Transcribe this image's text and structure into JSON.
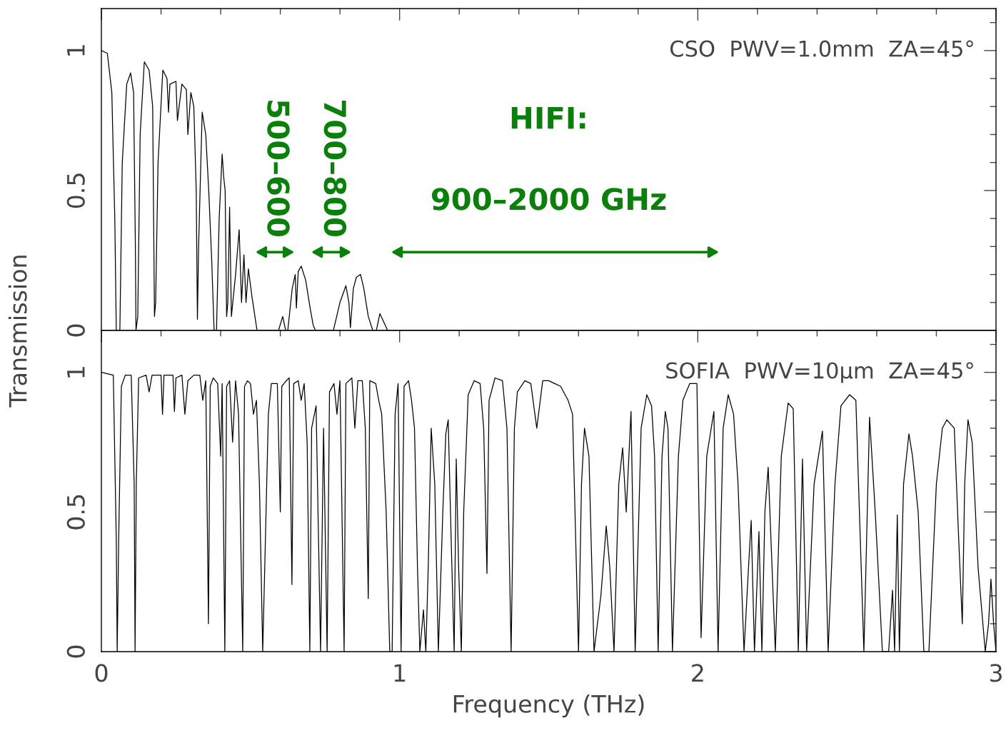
{
  "chart_data": [
    {
      "type": "line",
      "ylabel": "Transmission",
      "xlim": [
        0,
        3
      ],
      "ylim": [
        0,
        1.15
      ],
      "tick_labels": "y",
      "xticks": [
        0,
        {
          "value": 0.2,
          "label": null
        },
        {
          "value": 0.4,
          "label": null
        },
        {
          "value": 0.6,
          "label": null
        },
        {
          "value": 0.8,
          "label": null
        },
        1,
        {
          "value": 1.2,
          "label": null
        },
        {
          "value": 1.4,
          "label": null
        },
        {
          "value": 1.6,
          "label": null
        },
        {
          "value": 1.8,
          "label": null
        },
        2,
        {
          "value": 2.2,
          "label": null
        },
        {
          "value": 2.4,
          "label": null
        },
        {
          "value": 2.6,
          "label": null
        },
        {
          "value": 2.8,
          "label": null
        },
        3
      ],
      "yticks": [
        0,
        {
          "value": 0.1,
          "label": null
        },
        {
          "value": 0.2,
          "label": null
        },
        {
          "value": 0.3,
          "label": null
        },
        {
          "value": 0.4,
          "label": null
        },
        0.5,
        {
          "value": 0.6,
          "label": null
        },
        {
          "value": 0.7,
          "label": null
        },
        {
          "value": 0.8,
          "label": null
        },
        {
          "value": 0.9,
          "label": null
        },
        1,
        {
          "value": 1.1,
          "label": null
        }
      ],
      "annotations": [
        "CSO  PWV=1.0mm  ZA=45°",
        "500–600",
        "700–800",
        "HIFI:",
        "900–2000 GHz"
      ],
      "series": [
        {
          "color": "#000000",
          "x": [
            0,
            0.02,
            0.035,
            0.045,
            0.05,
            0.062,
            0.07,
            0.085,
            0.098,
            0.108,
            0.114,
            0.116,
            0.122,
            0.13,
            0.144,
            0.16,
            0.172,
            0.178,
            0.182,
            0.19,
            0.206,
            0.22,
            0.225,
            0.23,
            0.25,
            0.255,
            0.27,
            0.285,
            0.29,
            0.3,
            0.31,
            0.318,
            0.322,
            0.326,
            0.338,
            0.35,
            0.36,
            0.37,
            0.378,
            0.386,
            0.395,
            0.405,
            0.41,
            0.415,
            0.42,
            0.424,
            0.43,
            0.436,
            0.45,
            0.462,
            0.47,
            0.478,
            0.485,
            0.493,
            0.505,
            0.522,
            0.594,
            0.608,
            0.618,
            0.625,
            0.64,
            0.65,
            0.654,
            0.66,
            0.67,
            0.685,
            0.7,
            0.71,
            0.718,
            0.778,
            0.8,
            0.82,
            0.83,
            0.835,
            0.845,
            0.855,
            0.869,
            0.88,
            0.895,
            0.91,
            0.922,
            0.934,
            0.96,
            3.0
          ],
          "values": [
            1.0,
            0.99,
            0.85,
            0.4,
            0,
            0,
            0.6,
            0.88,
            0.92,
            0.85,
            0.3,
            0,
            0.05,
            0.7,
            0.96,
            0.93,
            0.8,
            0.05,
            0.1,
            0.6,
            0.93,
            0.9,
            0.78,
            0.88,
            0.89,
            0.75,
            0.88,
            0.86,
            0.7,
            0.85,
            0.8,
            0.5,
            0.04,
            0.3,
            0.78,
            0.7,
            0.5,
            0.25,
            0,
            0,
            0.4,
            0.63,
            0.55,
            0.5,
            0.05,
            0.1,
            0.44,
            0.05,
            0.2,
            0.36,
            0.1,
            0.27,
            0.1,
            0.22,
            0.12,
            0,
            0,
            0.05,
            0,
            0,
            0.15,
            0.2,
            0.08,
            0.21,
            0.23,
            0.18,
            0.08,
            0.02,
            0,
            0,
            0.1,
            0.16,
            0.1,
            0.01,
            0.15,
            0.19,
            0.2,
            0.15,
            0.05,
            0,
            0,
            0.06,
            0,
            0
          ]
        }
      ]
    },
    {
      "type": "line",
      "xlabel": "Frequency (THz)",
      "xlim": [
        0,
        3
      ],
      "ylim": [
        0,
        1.15
      ],
      "xticks": [
        0,
        {
          "value": 0.2,
          "label": null
        },
        {
          "value": 0.4,
          "label": null
        },
        {
          "value": 0.6,
          "label": null
        },
        {
          "value": 0.8,
          "label": null
        },
        1,
        {
          "value": 1.2,
          "label": null
        },
        {
          "value": 1.4,
          "label": null
        },
        {
          "value": 1.6,
          "label": null
        },
        {
          "value": 1.8,
          "label": null
        },
        2,
        {
          "value": 2.2,
          "label": null
        },
        {
          "value": 2.4,
          "label": null
        },
        {
          "value": 2.6,
          "label": null
        },
        {
          "value": 2.8,
          "label": null
        },
        3
      ],
      "yticks": [
        0,
        {
          "value": 0.1,
          "label": null
        },
        {
          "value": 0.2,
          "label": null
        },
        {
          "value": 0.3,
          "label": null
        },
        {
          "value": 0.4,
          "label": null
        },
        0.5,
        {
          "value": 0.6,
          "label": null
        },
        {
          "value": 0.7,
          "label": null
        },
        {
          "value": 0.8,
          "label": null
        },
        {
          "value": 0.9,
          "label": null
        },
        1,
        {
          "value": 1.1,
          "label": null
        }
      ],
      "annotations": [
        "SOFIA  PWV=10μm  ZA=45°"
      ],
      "series": [
        {
          "color": "#000000",
          "x": [
            0,
            0.04,
            0.05,
            0.053,
            0.058,
            0.067,
            0.08,
            0.1,
            0.11,
            0.113,
            0.117,
            0.125,
            0.15,
            0.16,
            0.17,
            0.2,
            0.205,
            0.21,
            0.24,
            0.245,
            0.25,
            0.27,
            0.28,
            0.29,
            0.31,
            0.33,
            0.34,
            0.35,
            0.359,
            0.365,
            0.375,
            0.39,
            0.4,
            0.405,
            0.414,
            0.42,
            0.43,
            0.44,
            0.45,
            0.46,
            0.474,
            0.48,
            0.49,
            0.5,
            0.51,
            0.52,
            0.53,
            0.541,
            0.55,
            0.56,
            0.57,
            0.59,
            0.6,
            0.605,
            0.62,
            0.63,
            0.639,
            0.645,
            0.66,
            0.67,
            0.68,
            0.69,
            0.699,
            0.705,
            0.72,
            0.735,
            0.745,
            0.757,
            0.765,
            0.78,
            0.79,
            0.8,
            0.814,
            0.82,
            0.84,
            0.85,
            0.86,
            0.875,
            0.885,
            0.895,
            0.9,
            0.92,
            0.93,
            0.94,
            0.955,
            0.967,
            0.975,
            0.985,
            0.995,
            1.005,
            1.015,
            1.03,
            1.04,
            1.05,
            1.06,
            1.068,
            1.08,
            1.088,
            1.096,
            1.106,
            1.118,
            1.13,
            1.145,
            1.155,
            1.163,
            1.173,
            1.183,
            1.19,
            1.198,
            1.207,
            1.215,
            1.23,
            1.25,
            1.27,
            1.282,
            1.293,
            1.3,
            1.32,
            1.345,
            1.36,
            1.374,
            1.385,
            1.395,
            1.42,
            1.44,
            1.46,
            1.48,
            1.5,
            1.52,
            1.54,
            1.565,
            1.58,
            1.6,
            1.61,
            1.62,
            1.635,
            1.652,
            1.675,
            1.693,
            1.705,
            1.719,
            1.735,
            1.748,
            1.76,
            1.776,
            1.79,
            1.81,
            1.829,
            1.845,
            1.855,
            1.867,
            1.88,
            1.891,
            1.9,
            1.915,
            1.935,
            1.95,
            1.973,
            1.997,
            2.011,
            2.03,
            2.054,
            2.068,
            2.085,
            2.102,
            2.12,
            2.135,
            2.155,
            2.17,
            2.179,
            2.19,
            2.205,
            2.215,
            2.225,
            2.236,
            2.26,
            2.28,
            2.303,
            2.32,
            2.337,
            2.351,
            2.365,
            2.39,
            2.418,
            2.437,
            2.46,
            2.48,
            2.509,
            2.53,
            2.557,
            2.576,
            2.595,
            2.619,
            2.64,
            2.653,
            2.66,
            2.669,
            2.676,
            2.69,
            2.708,
            2.72,
            2.739,
            2.758,
            2.775,
            2.8,
            2.82,
            2.835,
            2.86,
            2.875,
            2.887,
            2.895,
            2.906,
            2.92,
            2.94,
            2.964,
            2.975,
            2.983,
            2.992,
            3.0
          ],
          "values": [
            1.0,
            0.99,
            0.4,
            0,
            0.4,
            0.95,
            0.99,
            0.99,
            0.6,
            0,
            0.6,
            0.98,
            0.99,
            0.93,
            0.99,
            0.99,
            0.85,
            0.99,
            0.99,
            0.86,
            0.98,
            0.99,
            0.85,
            0.97,
            0.99,
            0.99,
            0.9,
            0.97,
            0.1,
            0.95,
            0.98,
            0.96,
            0.7,
            0.96,
            0,
            0.95,
            0.97,
            0.75,
            0.97,
            0.85,
            0,
            0.95,
            0.97,
            0.96,
            0.85,
            0.9,
            0.6,
            0,
            0.4,
            0.85,
            0.96,
            0.96,
            0.5,
            0.95,
            0.97,
            0.98,
            0.24,
            0.96,
            0.97,
            0.9,
            0.96,
            0.75,
            0,
            0.8,
            0.88,
            0,
            0.8,
            0,
            0.93,
            0.96,
            0.85,
            0.97,
            0,
            0.96,
            0.98,
            0.8,
            0.97,
            0.97,
            0.8,
            0.19,
            0.97,
            0.96,
            0.9,
            0.85,
            0.5,
            0,
            0,
            0.85,
            0.96,
            0,
            0.95,
            0.97,
            0.9,
            0.8,
            0.3,
            0,
            0.15,
            0,
            0.3,
            0.8,
            0.6,
            0,
            0.5,
            0.78,
            0.83,
            0.4,
            0,
            0.69,
            0.3,
            0,
            0.5,
            0.92,
            0.97,
            0.96,
            0.8,
            0.28,
            0.9,
            0.98,
            0.97,
            0.8,
            0,
            0.8,
            0.93,
            0.97,
            0.96,
            0.8,
            0.97,
            0.97,
            0.96,
            0.95,
            0.9,
            0.85,
            0,
            0.6,
            0.8,
            0.7,
            0,
            0.2,
            0.45,
            0.3,
            0,
            0.6,
            0.73,
            0.5,
            0.86,
            0,
            0.8,
            0.92,
            0.88,
            0.7,
            0,
            0.7,
            0.86,
            0.8,
            0,
            0.7,
            0.9,
            0.96,
            0.96,
            0.05,
            0.7,
            0.86,
            0,
            0.8,
            0.92,
            0.85,
            0.6,
            0,
            0.3,
            0.47,
            0,
            0.43,
            0,
            0.5,
            0.66,
            0,
            0.7,
            0.89,
            0.87,
            0,
            0.69,
            0,
            0.6,
            0.79,
            0,
            0.6,
            0.88,
            0.92,
            0.9,
            0,
            0.84,
            0.5,
            0,
            0,
            0.22,
            0,
            0.49,
            0,
            0.6,
            0.78,
            0.7,
            0.5,
            0,
            0,
            0.6,
            0.8,
            0.83,
            0.8,
            0.4,
            0.1,
            0.6,
            0.83,
            0.75,
            0.3,
            0,
            0.1,
            0.26,
            0.1,
            0
          ]
        }
      ]
    }
  ]
}
